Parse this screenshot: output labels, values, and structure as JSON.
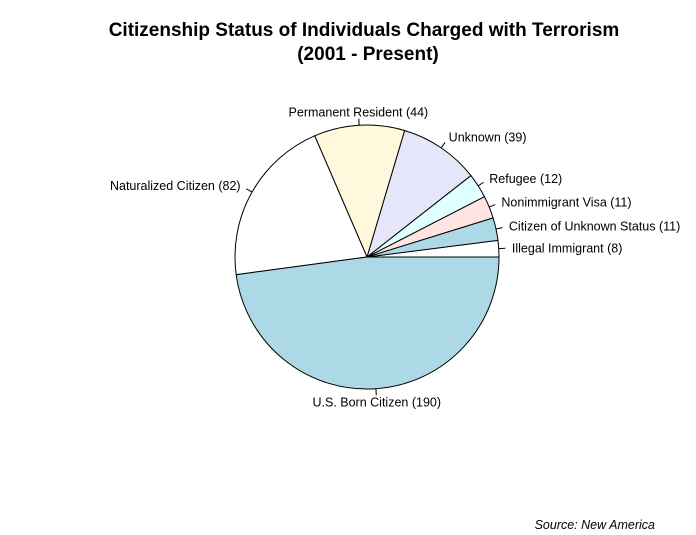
{
  "chart_data": {
    "type": "pie",
    "title": {
      "line1": "Citizenship Status of Individuals Charged with Terrorism",
      "line2": "(2001 - Present)"
    },
    "slices": [
      {
        "label": "Illegal Immigrant (8)",
        "name": "Illegal Immigrant",
        "value": 8,
        "color": "#ffffff"
      },
      {
        "label": "Citizen of Unknown Status (11)",
        "name": "Citizen of Unknown Status",
        "value": 11,
        "color": "#add8e6"
      },
      {
        "label": "Nonimmigrant Visa (11)",
        "name": "Nonimmigrant Visa",
        "value": 11,
        "color": "#ffe4e1"
      },
      {
        "label": "Refugee (12)",
        "name": "Refugee",
        "value": 12,
        "color": "#e0ffff"
      },
      {
        "label": "Unknown (39)",
        "name": "Unknown",
        "value": 39,
        "color": "#e6e6fa"
      },
      {
        "label": "Permanent Resident (44)",
        "name": "Permanent Resident",
        "value": 44,
        "color": "#fff8dc"
      },
      {
        "label": "Naturalized Citizen (82)",
        "name": "Naturalized Citizen",
        "value": 82,
        "color": "#ffffff"
      },
      {
        "label": "U.S. Born Citizen (190)",
        "name": "U.S. Born Citizen",
        "value": 190,
        "color": "#add8e6"
      }
    ],
    "start_angle_deg": 0,
    "direction": "counterclockwise",
    "source": "Source: New America"
  }
}
